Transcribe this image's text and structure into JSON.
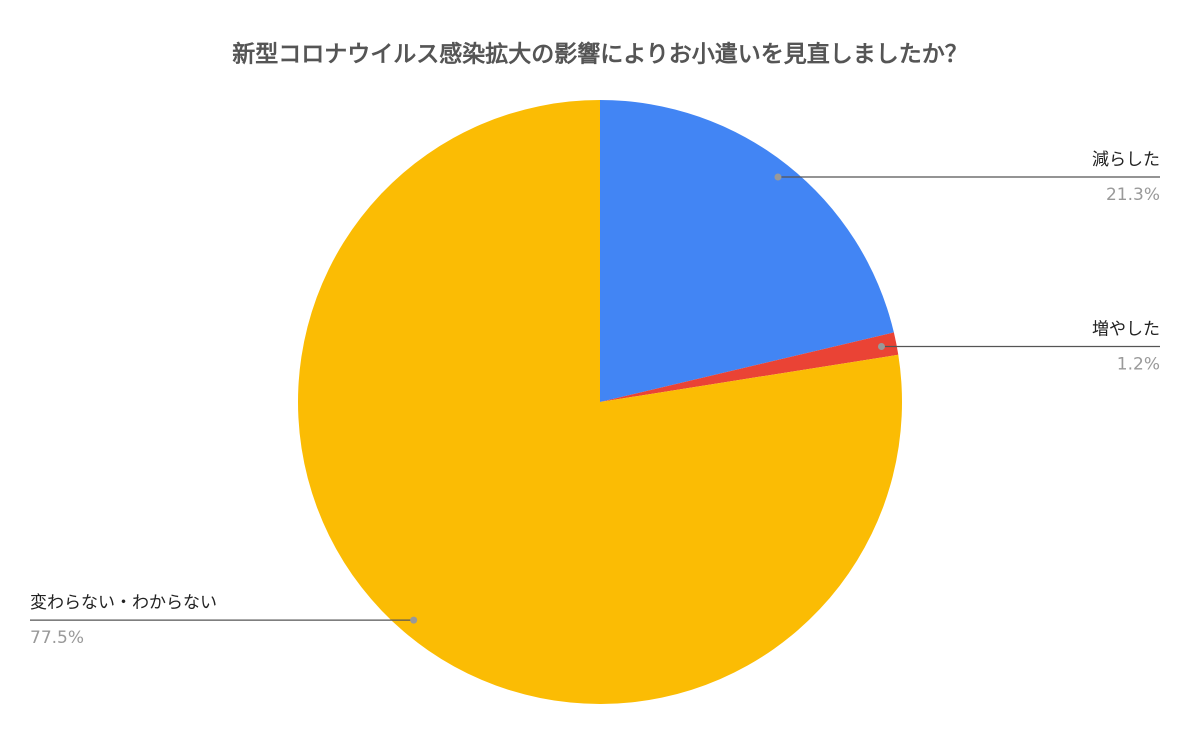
{
  "chart_data": {
    "type": "pie",
    "title": "新型コロナウイルス感染拡大の影響によりお小遣いを見直しましたか？",
    "categories": [
      "減らした",
      "増やした",
      "変わらない・わからない"
    ],
    "values": [
      21.3,
      1.2,
      77.5
    ],
    "value_labels": [
      "21.3%",
      "1.2%",
      "77.5%"
    ],
    "colors": [
      "#4285f4",
      "#ea4335",
      "#fbbc04"
    ]
  }
}
